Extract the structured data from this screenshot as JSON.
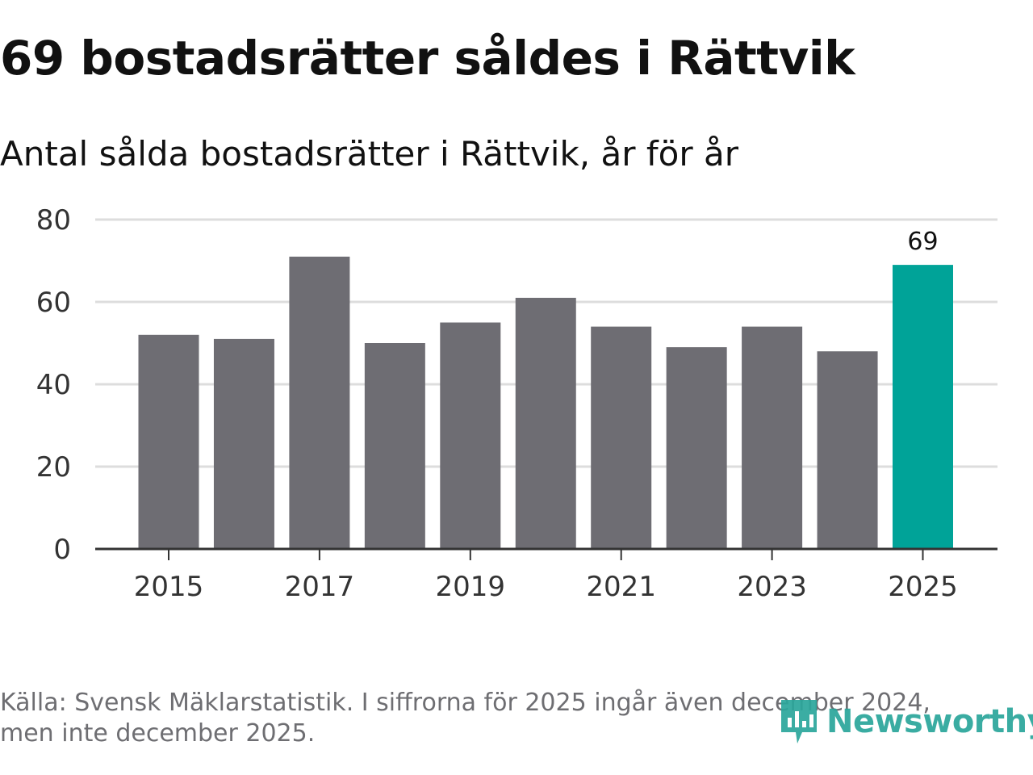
{
  "title": "69 bostadsrätter såldes i Rättvik",
  "subtitle": "Antal sålda bostadsrätter i Rättvik, år för år",
  "source": "Källa: Svensk Mäklarstatistik. I siffrorna för 2025 ingår även december 2024, men inte december 2025.",
  "brand": "Newsworthy",
  "colors": {
    "bar": "#6e6d73",
    "highlight": "#00a398",
    "grid": "#dddddd",
    "axis": "#333333",
    "brand": "#2aa69b"
  },
  "chart_data": {
    "type": "bar",
    "title": "69 bostadsrätter såldes i Rättvik",
    "subtitle": "Antal sålda bostadsrätter i Rättvik, år för år",
    "xlabel": "",
    "ylabel": "",
    "categories": [
      "2015",
      "2016",
      "2017",
      "2018",
      "2019",
      "2020",
      "2021",
      "2022",
      "2023",
      "2024",
      "2025"
    ],
    "values": [
      52,
      51,
      71,
      50,
      55,
      61,
      54,
      49,
      54,
      48,
      69
    ],
    "x_tick_labels": [
      "2015",
      "2017",
      "2019",
      "2021",
      "2023",
      "2025"
    ],
    "y_ticks": [
      0,
      20,
      40,
      60,
      80
    ],
    "ylim": [
      0,
      80
    ],
    "grid": true,
    "highlight_category": "2025",
    "annotations": [
      {
        "category": "2025",
        "text": "69"
      }
    ]
  }
}
